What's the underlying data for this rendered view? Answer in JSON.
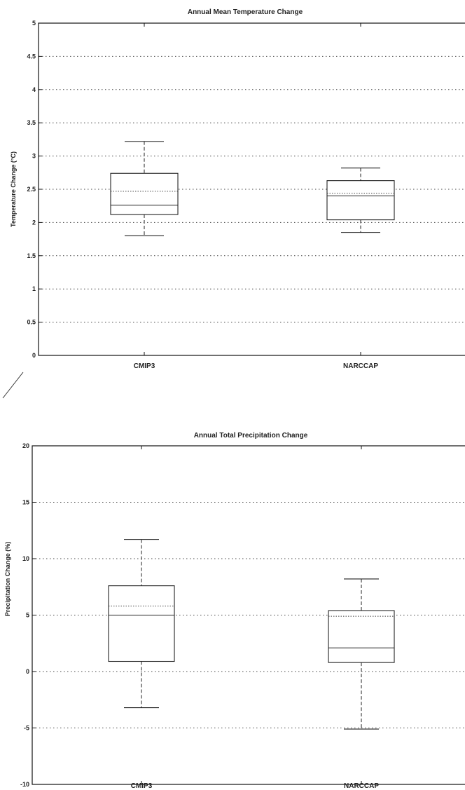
{
  "chart_data": [
    {
      "type": "box",
      "title": "Annual Mean Temperature Change",
      "ylabel": "Temperature Change (°C)",
      "xlabel": "",
      "categories": [
        "CMIP3",
        "NARCCAP"
      ],
      "ylim": [
        0,
        5
      ],
      "yticks": [
        0,
        0.5,
        1,
        1.5,
        2,
        2.5,
        3,
        3.5,
        4,
        4.5,
        5
      ],
      "ytick_labels": [
        "0",
        "0.5",
        "1",
        "1.5",
        "2",
        "2.5",
        "3",
        "3.5",
        "4",
        "4.5",
        "5"
      ],
      "grid": true,
      "boxes": [
        {
          "min": 1.8,
          "q1": 2.12,
          "median": 2.26,
          "mean": 2.47,
          "q3": 2.74,
          "max": 3.22
        },
        {
          "min": 1.85,
          "q1": 2.04,
          "median": 2.4,
          "mean": 2.44,
          "q3": 2.63,
          "max": 2.82
        }
      ]
    },
    {
      "type": "box",
      "title": "Annual Total Precipitation Change",
      "ylabel": "Precipitation Change (%)",
      "xlabel": "",
      "categories": [
        "CMIP3",
        "NARCCAP"
      ],
      "ylim": [
        -10,
        20
      ],
      "yticks": [
        -10,
        -5,
        0,
        5,
        10,
        15,
        20
      ],
      "ytick_labels": [
        "-10",
        "-5",
        "0",
        "5",
        "10",
        "15",
        "20"
      ],
      "grid": true,
      "boxes": [
        {
          "min": -3.2,
          "q1": 0.9,
          "median": 5.0,
          "mean": 5.8,
          "q3": 7.6,
          "max": 11.7
        },
        {
          "min": -5.1,
          "q1": 0.8,
          "median": 2.1,
          "mean": 4.9,
          "q3": 5.4,
          "max": 8.2
        }
      ]
    }
  ]
}
